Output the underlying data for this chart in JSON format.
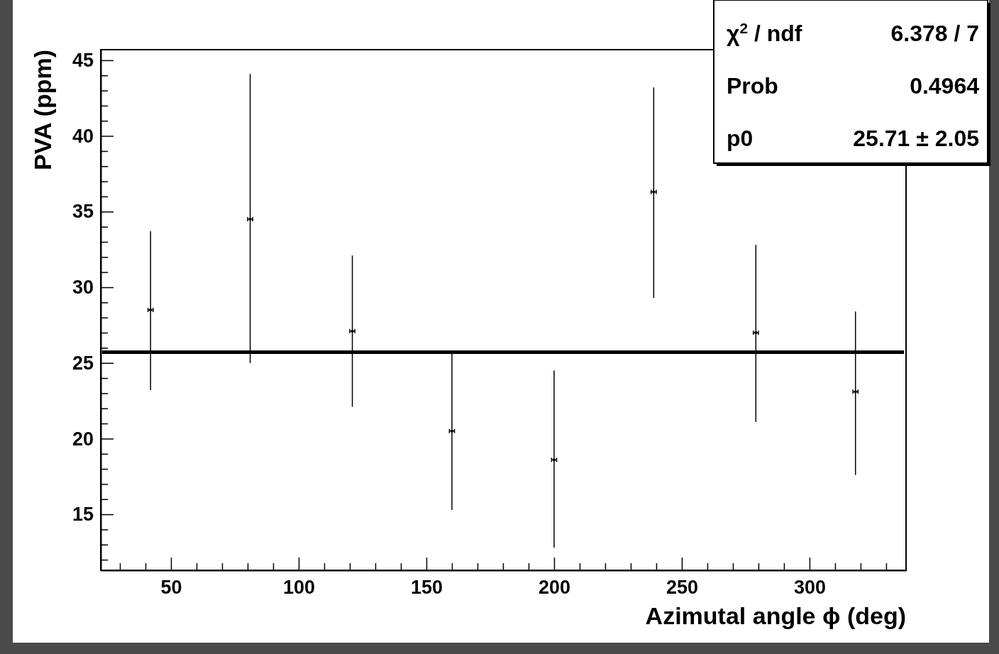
{
  "chart_data": {
    "type": "scatter",
    "xlabel": "Azimutal angle ϕ (deg)",
    "ylabel": "PVA (ppm)",
    "xlim": [
      22.5,
      337.8
    ],
    "ylim": [
      11.3,
      45.7
    ],
    "xticks": [
      {
        "value": 30,
        "label": null
      },
      {
        "value": 40,
        "label": null
      },
      50,
      {
        "value": 60,
        "label": null
      },
      {
        "value": 70,
        "label": null
      },
      {
        "value": 80,
        "label": null
      },
      {
        "value": 90,
        "label": null
      },
      100,
      {
        "value": 110,
        "label": null
      },
      {
        "value": 120,
        "label": null
      },
      {
        "value": 130,
        "label": null
      },
      {
        "value": 140,
        "label": null
      },
      150,
      {
        "value": 160,
        "label": null
      },
      {
        "value": 170,
        "label": null
      },
      {
        "value": 180,
        "label": null
      },
      {
        "value": 190,
        "label": null
      },
      200,
      {
        "value": 210,
        "label": null
      },
      {
        "value": 220,
        "label": null
      },
      {
        "value": 230,
        "label": null
      },
      {
        "value": 240,
        "label": null
      },
      250,
      {
        "value": 260,
        "label": null
      },
      {
        "value": 270,
        "label": null
      },
      {
        "value": 280,
        "label": null
      },
      {
        "value": 290,
        "label": null
      },
      300,
      {
        "value": 310,
        "label": null
      },
      {
        "value": 320,
        "label": null
      },
      {
        "value": 330,
        "label": null
      }
    ],
    "yticks": [
      {
        "value": 12,
        "label": null
      },
      {
        "value": 13,
        "label": null
      },
      {
        "value": 14,
        "label": null
      },
      15,
      {
        "value": 16,
        "label": null
      },
      {
        "value": 17,
        "label": null
      },
      {
        "value": 18,
        "label": null
      },
      {
        "value": 19,
        "label": null
      },
      20,
      {
        "value": 21,
        "label": null
      },
      {
        "value": 22,
        "label": null
      },
      {
        "value": 23,
        "label": null
      },
      {
        "value": 24,
        "label": null
      },
      25,
      {
        "value": 26,
        "label": null
      },
      {
        "value": 27,
        "label": null
      },
      {
        "value": 28,
        "label": null
      },
      {
        "value": 29,
        "label": null
      },
      30,
      {
        "value": 31,
        "label": null
      },
      {
        "value": 32,
        "label": null
      },
      {
        "value": 33,
        "label": null
      },
      {
        "value": 34,
        "label": null
      },
      35,
      {
        "value": 36,
        "label": null
      },
      {
        "value": 37,
        "label": null
      },
      {
        "value": 38,
        "label": null
      },
      {
        "value": 39,
        "label": null
      },
      40,
      {
        "value": 41,
        "label": null
      },
      {
        "value": 42,
        "label": null
      },
      {
        "value": 43,
        "label": null
      },
      {
        "value": 44,
        "label": null
      },
      45
    ],
    "grid": false,
    "series": [
      {
        "color": "#000000",
        "marker": "square",
        "x": [
          42,
          81,
          121,
          160,
          200,
          239,
          279,
          318
        ],
        "values": [
          28.5,
          34.5,
          27.1,
          20.5,
          18.6,
          36.3,
          27.0,
          23.1
        ],
        "errors": [
          [
            23.2,
            33.7
          ],
          [
            25.0,
            44.1
          ],
          [
            22.1,
            32.1
          ],
          [
            15.3,
            25.6
          ],
          [
            12.8,
            24.5
          ],
          [
            29.3,
            43.2
          ],
          [
            21.1,
            32.8
          ],
          [
            17.6,
            28.4
          ]
        ],
        "xerrors": [
          1,
          1,
          1,
          1,
          1,
          1,
          1,
          1
        ]
      },
      {
        "type": "line",
        "color": "#000000",
        "x": [
          23,
          337
        ],
        "values": [
          25.71,
          25.71
        ]
      }
    ],
    "annotations": [
      "χ$^{2}$ / ndf",
      "6.378 / 7",
      "Prob",
      "0.4964",
      "p0",
      "25.71 ± 2.05"
    ]
  }
}
